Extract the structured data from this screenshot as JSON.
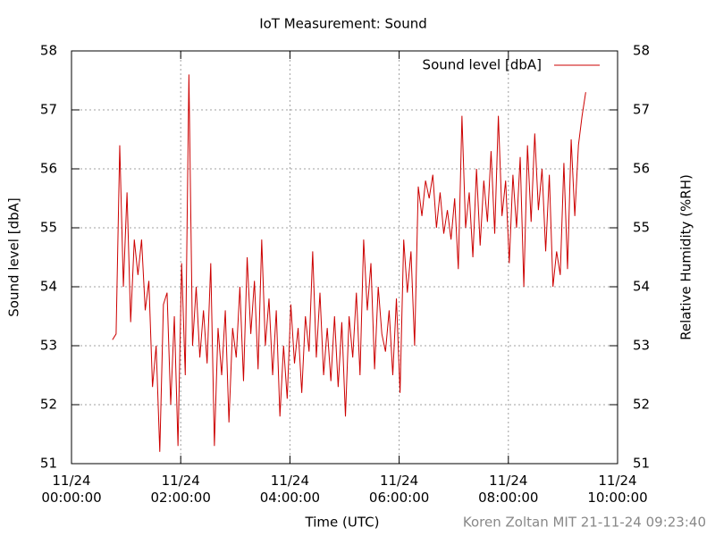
{
  "chart_data": {
    "type": "line",
    "title": "IoT Measurement: Sound",
    "xlabel": "Time (UTC)",
    "ylabel": "Sound level [dbA]",
    "y2label": "Relative Humidity (%RH)",
    "footer": "Koren Zoltan MIT 21-11-24 09:23:40",
    "grid": true,
    "legend": "top right",
    "xlim": [
      "11/24 00:00:00",
      "11/24 10:00:00"
    ],
    "xticks": [
      {
        "value": "11/24 00:00:00",
        "label": [
          "11/24",
          "00:00:00"
        ]
      },
      {
        "value": "11/24 02:00:00",
        "label": [
          "11/24",
          "02:00:00"
        ]
      },
      {
        "value": "11/24 04:00:00",
        "label": [
          "11/24",
          "04:00:00"
        ]
      },
      {
        "value": "11/24 06:00:00",
        "label": [
          "11/24",
          "06:00:00"
        ]
      },
      {
        "value": "11/24 08:00:00",
        "label": [
          "11/24",
          "08:00:00"
        ]
      },
      {
        "value": "11/24 10:00:00",
        "label": [
          "11/24",
          "10:00:00"
        ]
      }
    ],
    "ylim": [
      51,
      58
    ],
    "yticks": [
      51,
      52,
      53,
      54,
      55,
      56,
      57,
      58
    ],
    "y2lim": [
      51,
      58
    ],
    "y2ticks": [
      51,
      52,
      53,
      54,
      55,
      56,
      57,
      58
    ],
    "x": [
      "11/24 00:45:00",
      "11/24 00:49:00",
      "11/24 00:53:00",
      "11/24 00:57:00",
      "11/24 01:01:00",
      "11/24 01:05:00",
      "11/24 01:09:00",
      "11/24 01:13:00",
      "11/24 01:17:00",
      "11/24 01:21:00",
      "11/24 01:25:00",
      "11/24 01:29:00",
      "11/24 01:33:00",
      "11/24 01:37:00",
      "11/24 01:41:00",
      "11/24 01:45:00",
      "11/24 01:49:00",
      "11/24 01:53:00",
      "11/24 01:57:00",
      "11/24 02:01:00",
      "11/24 02:05:00",
      "11/24 02:09:00",
      "11/24 02:13:00",
      "11/24 02:17:00",
      "11/24 02:21:00",
      "11/24 02:25:00",
      "11/24 02:29:00",
      "11/24 02:33:00",
      "11/24 02:37:00",
      "11/24 02:41:00",
      "11/24 02:45:00",
      "11/24 02:49:00",
      "11/24 02:53:00",
      "11/24 02:57:00",
      "11/24 03:01:00",
      "11/24 03:05:00",
      "11/24 03:09:00",
      "11/24 03:13:00",
      "11/24 03:17:00",
      "11/24 03:21:00",
      "11/24 03:25:00",
      "11/24 03:29:00",
      "11/24 03:33:00",
      "11/24 03:37:00",
      "11/24 03:41:00",
      "11/24 03:45:00",
      "11/24 03:49:00",
      "11/24 03:53:00",
      "11/24 03:57:00",
      "11/24 04:01:00",
      "11/24 04:05:00",
      "11/24 04:09:00",
      "11/24 04:13:00",
      "11/24 04:17:00",
      "11/24 04:21:00",
      "11/24 04:25:00",
      "11/24 04:29:00",
      "11/24 04:33:00",
      "11/24 04:37:00",
      "11/24 04:41:00",
      "11/24 04:45:00",
      "11/24 04:49:00",
      "11/24 04:53:00",
      "11/24 04:57:00",
      "11/24 05:01:00",
      "11/24 05:05:00",
      "11/24 05:09:00",
      "11/24 05:13:00",
      "11/24 05:17:00",
      "11/24 05:21:00",
      "11/24 05:25:00",
      "11/24 05:29:00",
      "11/24 05:33:00",
      "11/24 05:37:00",
      "11/24 05:41:00",
      "11/24 05:45:00",
      "11/24 05:49:00",
      "11/24 05:53:00",
      "11/24 05:57:00",
      "11/24 06:01:00",
      "11/24 06:05:00",
      "11/24 06:09:00",
      "11/24 06:13:00",
      "11/24 06:17:00",
      "11/24 06:21:00",
      "11/24 06:25:00",
      "11/24 06:29:00",
      "11/24 06:33:00",
      "11/24 06:37:00",
      "11/24 06:41:00",
      "11/24 06:45:00",
      "11/24 06:49:00",
      "11/24 06:53:00",
      "11/24 06:57:00",
      "11/24 07:01:00",
      "11/24 07:05:00",
      "11/24 07:09:00",
      "11/24 07:13:00",
      "11/24 07:17:00",
      "11/24 07:21:00",
      "11/24 07:25:00",
      "11/24 07:29:00",
      "11/24 07:33:00",
      "11/24 07:37:00",
      "11/24 07:41:00",
      "11/24 07:45:00",
      "11/24 07:49:00",
      "11/24 07:53:00",
      "11/24 07:57:00",
      "11/24 08:01:00",
      "11/24 08:05:00",
      "11/24 08:09:00",
      "11/24 08:13:00",
      "11/24 08:17:00",
      "11/24 08:21:00",
      "11/24 08:25:00",
      "11/24 08:29:00",
      "11/24 08:33:00",
      "11/24 08:37:00",
      "11/24 08:41:00",
      "11/24 08:45:00",
      "11/24 08:49:00",
      "11/24 08:53:00",
      "11/24 08:57:00",
      "11/24 09:01:00",
      "11/24 09:05:00",
      "11/24 09:09:00",
      "11/24 09:13:00",
      "11/24 09:17:00",
      "11/24 09:21:00",
      "11/24 09:25:00"
    ],
    "series": [
      {
        "name": "Sound level [dbA]",
        "color": "#cc0000",
        "values": [
          53.1,
          53.2,
          56.4,
          54.0,
          55.6,
          53.4,
          54.8,
          54.2,
          54.8,
          53.6,
          54.1,
          52.3,
          53.0,
          51.2,
          53.7,
          53.9,
          52.0,
          53.5,
          51.3,
          54.4,
          52.5,
          57.6,
          53.0,
          54.0,
          52.8,
          53.6,
          52.7,
          54.4,
          51.3,
          53.3,
          52.5,
          53.6,
          51.7,
          53.3,
          52.8,
          54.0,
          52.4,
          54.5,
          53.2,
          54.1,
          52.6,
          54.8,
          53.0,
          53.8,
          52.5,
          53.6,
          51.8,
          53.0,
          52.1,
          53.7,
          52.7,
          53.3,
          52.2,
          53.5,
          52.9,
          54.6,
          52.8,
          53.9,
          52.5,
          53.3,
          52.4,
          53.5,
          52.3,
          53.4,
          51.8,
          53.5,
          52.8,
          53.9,
          52.5,
          54.8,
          53.6,
          54.4,
          52.6,
          54.0,
          53.2,
          52.9,
          53.6,
          52.5,
          53.8,
          52.2,
          54.8,
          53.9,
          54.6,
          53.0,
          55.7,
          55.2,
          55.8,
          55.5,
          55.9,
          55.0,
          55.6,
          54.9,
          55.3,
          54.8,
          55.5,
          54.3,
          56.9,
          55.0,
          55.6,
          54.5,
          56.0,
          54.7,
          55.8,
          55.1,
          56.3,
          54.9,
          56.9,
          55.2,
          55.8,
          54.4,
          55.9,
          55.0,
          56.2,
          54.0,
          56.4,
          55.1,
          56.6,
          55.3,
          56.0,
          54.6,
          55.9,
          54.0,
          54.6,
          54.2,
          56.1,
          54.3,
          56.5,
          55.2,
          56.4,
          56.9,
          57.3
        ]
      }
    ]
  }
}
